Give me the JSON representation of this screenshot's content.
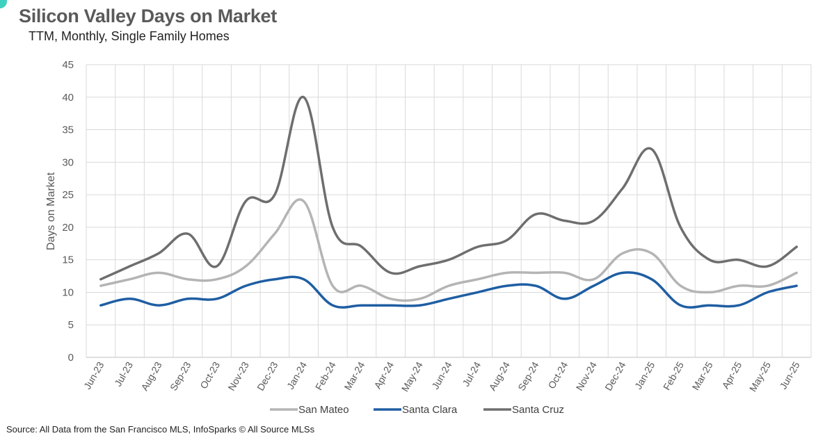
{
  "title": "Silicon Valley Days on Market",
  "subtitle": "TTM, Monthly, Single Family Homes",
  "source": "Source: All Data from the San Francisco MLS, InfoSparks © All Source MLSs",
  "chart_data": {
    "type": "line",
    "title": "Silicon Valley Days on Market",
    "subtitle": "TTM, Monthly, Single Family Homes",
    "xlabel": "",
    "ylabel": "Days on Market",
    "ylim": [
      0,
      45
    ],
    "yticks": [
      0,
      5,
      10,
      15,
      20,
      25,
      30,
      35,
      40,
      45
    ],
    "grid": true,
    "legend_position": "bottom",
    "categories": [
      "Jun-23",
      "Jul-23",
      "Aug-23",
      "Sep-23",
      "Oct-23",
      "Nov-23",
      "Dec-23",
      "Jan-24",
      "Feb-24",
      "Mar-24",
      "Apr-24",
      "May-24",
      "Jun-24",
      "Jul-24",
      "Aug-24",
      "Sep-24",
      "Oct-24",
      "Nov-24",
      "Dec-24",
      "Jan-25",
      "Feb-25",
      "Mar-25",
      "Apr-25",
      "May-25",
      "Jun-25"
    ],
    "series": [
      {
        "name": "San Mateo",
        "color": "#b4b4b4",
        "values": [
          11,
          12,
          13,
          12,
          12,
          14,
          19,
          24,
          11,
          11,
          9,
          9,
          11,
          12,
          13,
          13,
          13,
          12,
          16,
          16,
          11,
          10,
          11,
          11,
          13
        ]
      },
      {
        "name": "Santa Clara",
        "color": "#1f5ea3",
        "values": [
          8,
          9,
          8,
          9,
          9,
          11,
          12,
          12,
          8,
          8,
          8,
          8,
          9,
          10,
          11,
          11,
          9,
          11,
          13,
          12,
          8,
          8,
          8,
          10,
          11
        ]
      },
      {
        "name": "Santa Cruz",
        "color": "#6e6e6e",
        "values": [
          12,
          14,
          16,
          19,
          14,
          24,
          25,
          40,
          20,
          17,
          13,
          14,
          15,
          17,
          18,
          22,
          21,
          21,
          26,
          32,
          20,
          15,
          15,
          14,
          17
        ]
      }
    ]
  }
}
